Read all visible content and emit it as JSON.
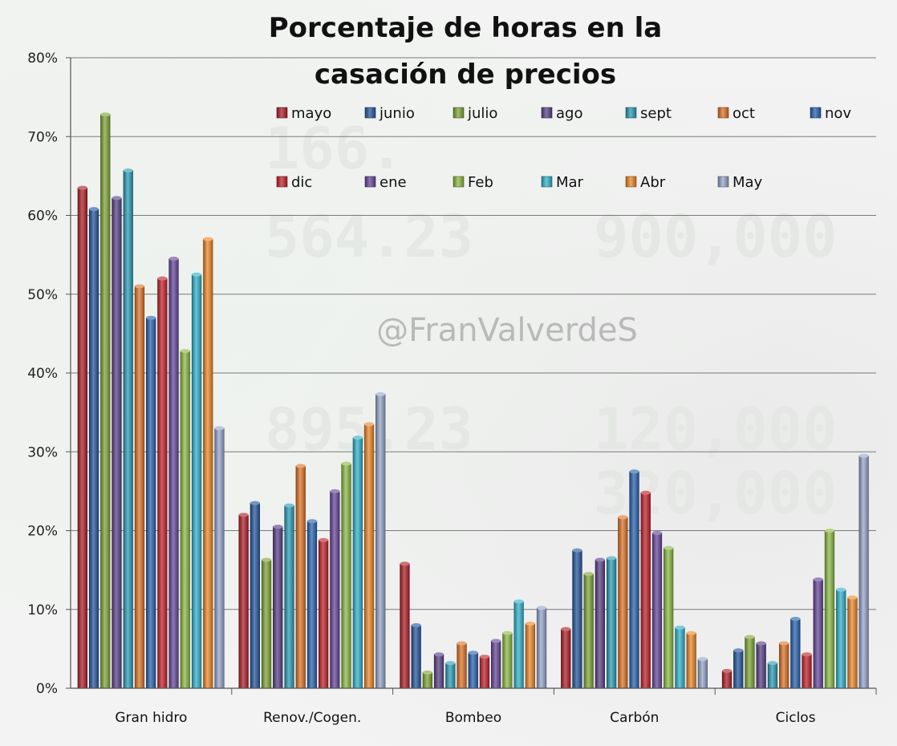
{
  "chart_data": {
    "type": "bar",
    "title_lines": [
      "Porcentaje de horas en la",
      "casación de precios"
    ],
    "xlabel": "",
    "ylabel": "",
    "ylim": [
      0,
      80
    ],
    "y_ticks": [
      "0%",
      "10%",
      "20%",
      "30%",
      "40%",
      "50%",
      "60%",
      "70%",
      "80%"
    ],
    "grid": true,
    "legend_position": "top-right",
    "watermark": "@FranValverdeS",
    "categories": [
      "Gran hidro",
      "Renov./Cogen.",
      "Bombeo",
      "Carbón",
      "Ciclos"
    ],
    "series": [
      {
        "name": "mayo",
        "color": "#b1232c",
        "values": [
          63.5,
          22.0,
          15.8,
          7.5,
          2.2
        ]
      },
      {
        "name": "junio",
        "color": "#2a5aa0",
        "values": [
          60.8,
          23.5,
          8.0,
          17.5,
          4.8
        ]
      },
      {
        "name": "julio",
        "color": "#82a83a",
        "values": [
          72.8,
          16.3,
          2.0,
          14.5,
          6.5
        ]
      },
      {
        "name": "ago",
        "color": "#5e4489",
        "values": [
          62.2,
          20.5,
          4.3,
          16.3,
          5.7
        ]
      },
      {
        "name": "sept",
        "color": "#2f9fb8",
        "values": [
          65.7,
          23.2,
          3.2,
          16.5,
          3.2
        ]
      },
      {
        "name": "oct",
        "color": "#e0772b",
        "values": [
          51.0,
          28.2,
          5.7,
          21.7,
          5.7
        ]
      },
      {
        "name": "nov",
        "color": "#2c66b2",
        "values": [
          47.0,
          21.2,
          4.5,
          27.5,
          8.8
        ]
      },
      {
        "name": "dic",
        "color": "#c4262e",
        "values": [
          52.0,
          18.8,
          4.0,
          24.8,
          4.3
        ]
      },
      {
        "name": "ene",
        "color": "#6a4a9c",
        "values": [
          54.5,
          25.0,
          6.0,
          19.7,
          13.8
        ]
      },
      {
        "name": "Feb",
        "color": "#8fbc48",
        "values": [
          42.8,
          28.5,
          7.0,
          17.8,
          20.0
        ]
      },
      {
        "name": "Mar",
        "color": "#34b4cc",
        "values": [
          52.5,
          31.8,
          11.0,
          7.7,
          12.5
        ]
      },
      {
        "name": "Abr",
        "color": "#ef8a2c",
        "values": [
          57.0,
          33.5,
          8.2,
          7.0,
          11.5
        ]
      },
      {
        "name": "May",
        "color": "#98a8cc",
        "values": [
          33.0,
          37.3,
          10.2,
          3.7,
          29.5
        ]
      }
    ]
  }
}
